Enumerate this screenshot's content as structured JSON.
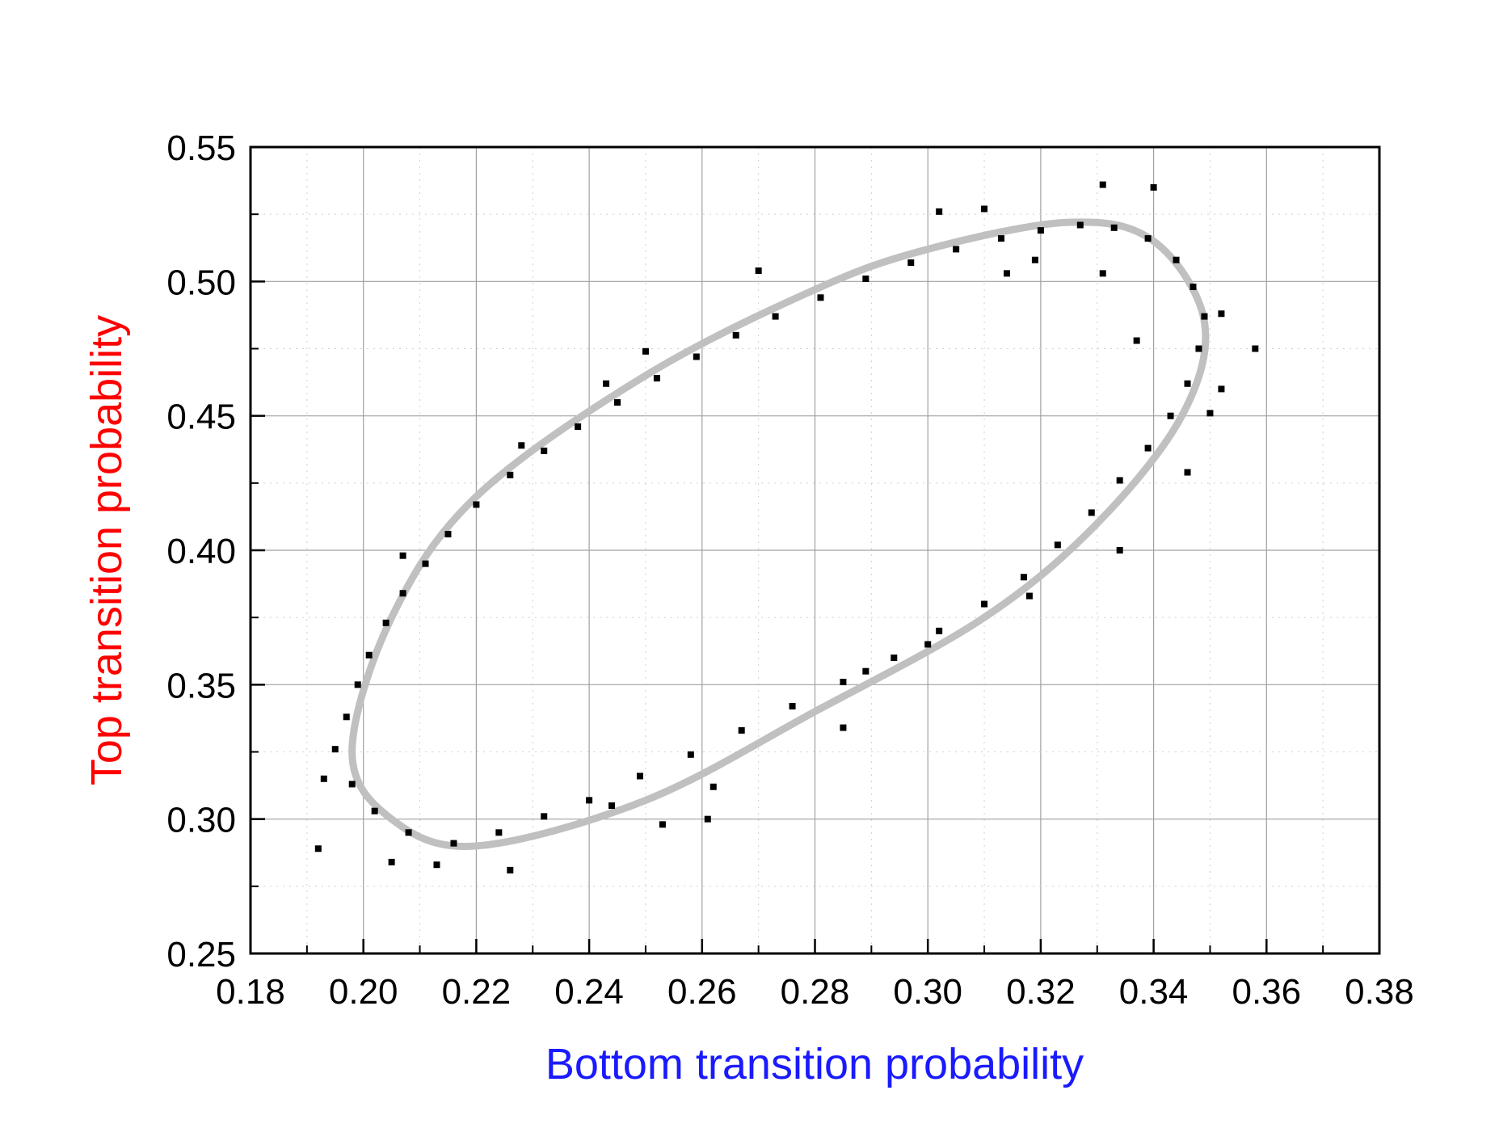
{
  "chart_data": {
    "type": "scatter",
    "title": "",
    "xlabel": "Bottom transition probability",
    "ylabel": "Top transition probability",
    "xlabel_color": "#1a1aff",
    "ylabel_color": "#ff0000",
    "xlim": [
      0.18,
      0.38
    ],
    "ylim": [
      0.25,
      0.55
    ],
    "x_ticks": [
      "0.18",
      "0.20",
      "0.22",
      "0.24",
      "0.26",
      "0.28",
      "0.30",
      "0.32",
      "0.34",
      "0.36",
      "0.38"
    ],
    "y_ticks": [
      "0.25",
      "0.30",
      "0.35",
      "0.40",
      "0.45",
      "0.50",
      "0.55"
    ],
    "grid": true,
    "legend": "none",
    "marker_color": "#000000",
    "fit_color": "#c0c0c0",
    "fit_curve": {
      "type": "ellipse",
      "points": [
        {
          "x": 0.198,
          "y": 0.325
        },
        {
          "x": 0.205,
          "y": 0.375
        },
        {
          "x": 0.22,
          "y": 0.42
        },
        {
          "x": 0.25,
          "y": 0.465
        },
        {
          "x": 0.28,
          "y": 0.497
        },
        {
          "x": 0.3,
          "y": 0.512
        },
        {
          "x": 0.325,
          "y": 0.522
        },
        {
          "x": 0.34,
          "y": 0.515
        },
        {
          "x": 0.349,
          "y": 0.485
        },
        {
          "x": 0.345,
          "y": 0.45
        },
        {
          "x": 0.33,
          "y": 0.41
        },
        {
          "x": 0.31,
          "y": 0.375
        },
        {
          "x": 0.28,
          "y": 0.34
        },
        {
          "x": 0.25,
          "y": 0.307
        },
        {
          "x": 0.22,
          "y": 0.29
        },
        {
          "x": 0.205,
          "y": 0.3
        },
        {
          "x": 0.198,
          "y": 0.325
        }
      ]
    },
    "series": [
      {
        "points": [
          {
            "x": 0.195,
            "y": 0.326
          },
          {
            "x": 0.197,
            "y": 0.338
          },
          {
            "x": 0.199,
            "y": 0.35
          },
          {
            "x": 0.201,
            "y": 0.361
          },
          {
            "x": 0.204,
            "y": 0.373
          },
          {
            "x": 0.207,
            "y": 0.384
          },
          {
            "x": 0.211,
            "y": 0.395
          },
          {
            "x": 0.215,
            "y": 0.406
          },
          {
            "x": 0.22,
            "y": 0.417
          },
          {
            "x": 0.226,
            "y": 0.428
          },
          {
            "x": 0.232,
            "y": 0.437
          },
          {
            "x": 0.238,
            "y": 0.446
          },
          {
            "x": 0.245,
            "y": 0.455
          },
          {
            "x": 0.252,
            "y": 0.464
          },
          {
            "x": 0.259,
            "y": 0.472
          },
          {
            "x": 0.266,
            "y": 0.48
          },
          {
            "x": 0.273,
            "y": 0.487
          },
          {
            "x": 0.281,
            "y": 0.494
          },
          {
            "x": 0.289,
            "y": 0.501
          },
          {
            "x": 0.297,
            "y": 0.507
          },
          {
            "x": 0.305,
            "y": 0.512
          },
          {
            "x": 0.313,
            "y": 0.516
          },
          {
            "x": 0.32,
            "y": 0.519
          },
          {
            "x": 0.327,
            "y": 0.521
          },
          {
            "x": 0.333,
            "y": 0.52
          },
          {
            "x": 0.339,
            "y": 0.516
          },
          {
            "x": 0.344,
            "y": 0.508
          },
          {
            "x": 0.347,
            "y": 0.498
          },
          {
            "x": 0.349,
            "y": 0.487
          },
          {
            "x": 0.348,
            "y": 0.475
          },
          {
            "x": 0.346,
            "y": 0.462
          },
          {
            "x": 0.343,
            "y": 0.45
          },
          {
            "x": 0.339,
            "y": 0.438
          },
          {
            "x": 0.334,
            "y": 0.426
          },
          {
            "x": 0.329,
            "y": 0.414
          },
          {
            "x": 0.323,
            "y": 0.402
          },
          {
            "x": 0.317,
            "y": 0.39
          },
          {
            "x": 0.31,
            "y": 0.38
          },
          {
            "x": 0.302,
            "y": 0.37
          },
          {
            "x": 0.294,
            "y": 0.36
          },
          {
            "x": 0.285,
            "y": 0.351
          },
          {
            "x": 0.276,
            "y": 0.342
          },
          {
            "x": 0.267,
            "y": 0.333
          },
          {
            "x": 0.258,
            "y": 0.324
          },
          {
            "x": 0.249,
            "y": 0.316
          },
          {
            "x": 0.24,
            "y": 0.307
          },
          {
            "x": 0.232,
            "y": 0.301
          },
          {
            "x": 0.224,
            "y": 0.295
          },
          {
            "x": 0.216,
            "y": 0.291
          },
          {
            "x": 0.208,
            "y": 0.295
          },
          {
            "x": 0.202,
            "y": 0.303
          },
          {
            "x": 0.198,
            "y": 0.313
          },
          {
            "x": 0.193,
            "y": 0.315
          },
          {
            "x": 0.192,
            "y": 0.289
          },
          {
            "x": 0.352,
            "y": 0.488
          },
          {
            "x": 0.358,
            "y": 0.475
          },
          {
            "x": 0.352,
            "y": 0.46
          },
          {
            "x": 0.35,
            "y": 0.451
          },
          {
            "x": 0.331,
            "y": 0.536
          },
          {
            "x": 0.34,
            "y": 0.535
          },
          {
            "x": 0.31,
            "y": 0.527
          },
          {
            "x": 0.302,
            "y": 0.526
          },
          {
            "x": 0.27,
            "y": 0.504
          },
          {
            "x": 0.25,
            "y": 0.474
          },
          {
            "x": 0.228,
            "y": 0.439
          },
          {
            "x": 0.207,
            "y": 0.398
          },
          {
            "x": 0.243,
            "y": 0.462
          },
          {
            "x": 0.289,
            "y": 0.355
          },
          {
            "x": 0.285,
            "y": 0.334
          },
          {
            "x": 0.262,
            "y": 0.312
          },
          {
            "x": 0.244,
            "y": 0.305
          },
          {
            "x": 0.226,
            "y": 0.281
          },
          {
            "x": 0.213,
            "y": 0.283
          },
          {
            "x": 0.205,
            "y": 0.284
          },
          {
            "x": 0.261,
            "y": 0.3
          },
          {
            "x": 0.253,
            "y": 0.298
          },
          {
            "x": 0.346,
            "y": 0.429
          },
          {
            "x": 0.334,
            "y": 0.4
          },
          {
            "x": 0.318,
            "y": 0.383
          },
          {
            "x": 0.3,
            "y": 0.365
          },
          {
            "x": 0.337,
            "y": 0.478
          },
          {
            "x": 0.331,
            "y": 0.503
          },
          {
            "x": 0.319,
            "y": 0.508
          },
          {
            "x": 0.314,
            "y": 0.503
          }
        ]
      }
    ]
  }
}
